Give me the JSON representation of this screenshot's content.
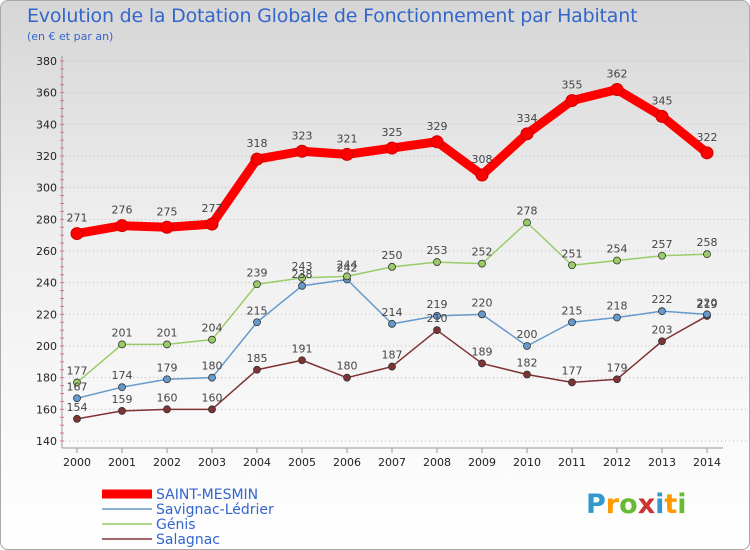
{
  "title": "Evolution de la Dotation Globale de Fonctionnement par Habitant",
  "subtitle": "(en € et par an)",
  "logo": "Proxiti",
  "chart_data": {
    "type": "line",
    "x": [
      2000,
      2001,
      2002,
      2003,
      2004,
      2005,
      2006,
      2007,
      2008,
      2009,
      2010,
      2011,
      2012,
      2013,
      2014
    ],
    "ylim": [
      140,
      380
    ],
    "yticks": [
      140,
      160,
      180,
      200,
      220,
      240,
      260,
      280,
      300,
      320,
      340,
      360,
      380
    ],
    "grid": "horizontal dotted",
    "legend_position": "bottom-left",
    "series": [
      {
        "name": "SAINT-MESMIN",
        "color": "#ff0000",
        "values": [
          271,
          276,
          275,
          277,
          318,
          323,
          321,
          325,
          329,
          308,
          334,
          355,
          362,
          345,
          322
        ]
      },
      {
        "name": "Savignac-Lédrier",
        "color": "#6699cc",
        "values": [
          167,
          174,
          179,
          180,
          215,
          238,
          242,
          214,
          219,
          220,
          200,
          215,
          218,
          222,
          220
        ]
      },
      {
        "name": "Génis",
        "color": "#99cc66",
        "values": [
          177,
          201,
          201,
          204,
          239,
          243,
          244,
          250,
          253,
          252,
          278,
          251,
          254,
          257,
          258
        ]
      },
      {
        "name": "Salagnac",
        "color": "#7f3333",
        "values": [
          154,
          159,
          160,
          160,
          185,
          191,
          180,
          187,
          210,
          189,
          182,
          177,
          179,
          203,
          219
        ]
      }
    ]
  }
}
